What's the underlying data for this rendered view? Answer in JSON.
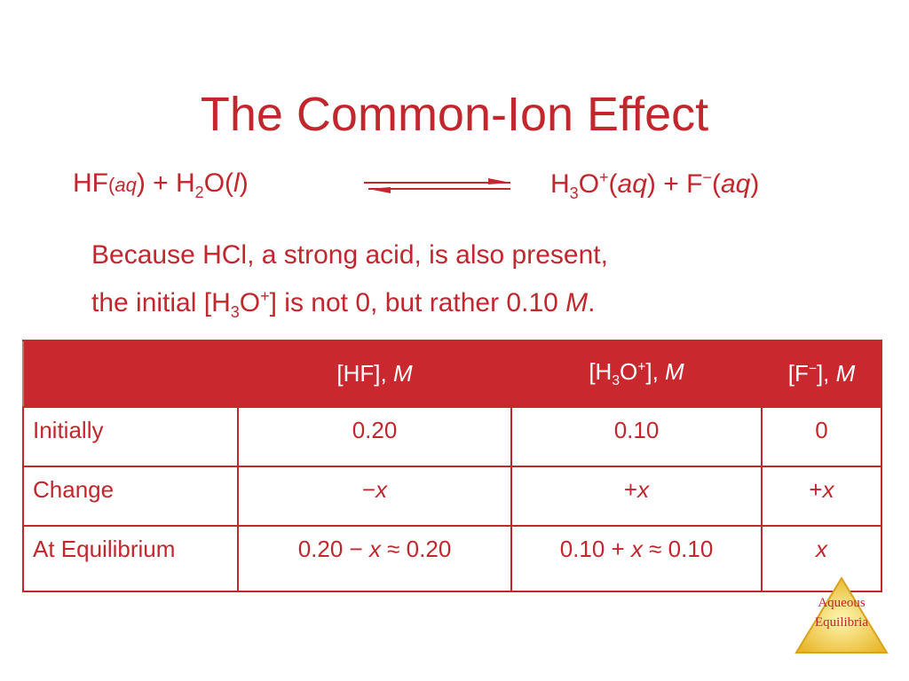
{
  "title": "The Common-Ion Effect",
  "equation": {
    "left": [
      "HF",
      "(",
      "aq",
      ") + H",
      "2",
      "O(",
      "l",
      ")"
    ],
    "right": [
      "H",
      "3",
      "O",
      "+",
      "(",
      "aq",
      ") + F",
      "−",
      "(",
      "aq",
      ")"
    ]
  },
  "note": [
    "Because HCl, a strong acid, is also present,",
    "the initial [H",
    "3",
    "O",
    "+",
    "] is not 0, but rather 0.10 ",
    "M",
    "."
  ],
  "table": {
    "header": [
      [
        "[HF], ",
        "M"
      ],
      [
        "[H",
        "3",
        "O",
        "+",
        "], ",
        "M"
      ],
      [
        "[F",
        "−",
        "], ",
        "M"
      ]
    ],
    "rows": [
      [
        [
          "Initially"
        ],
        [
          "0.20"
        ],
        [
          "0.10"
        ],
        [
          "0"
        ]
      ],
      [
        [
          "Change"
        ],
        [
          "−",
          "x"
        ],
        [
          "+",
          "x"
        ],
        [
          "+",
          "x"
        ]
      ],
      [
        [
          "At Equilibrium"
        ],
        [
          "0.20 − ",
          "x",
          " ≈ 0.20"
        ],
        [
          "0.10 + ",
          "x",
          " ≈ 0.10"
        ],
        [
          "x"
        ]
      ]
    ]
  },
  "logo": [
    "Aqueous",
    "Equilibria"
  ]
}
